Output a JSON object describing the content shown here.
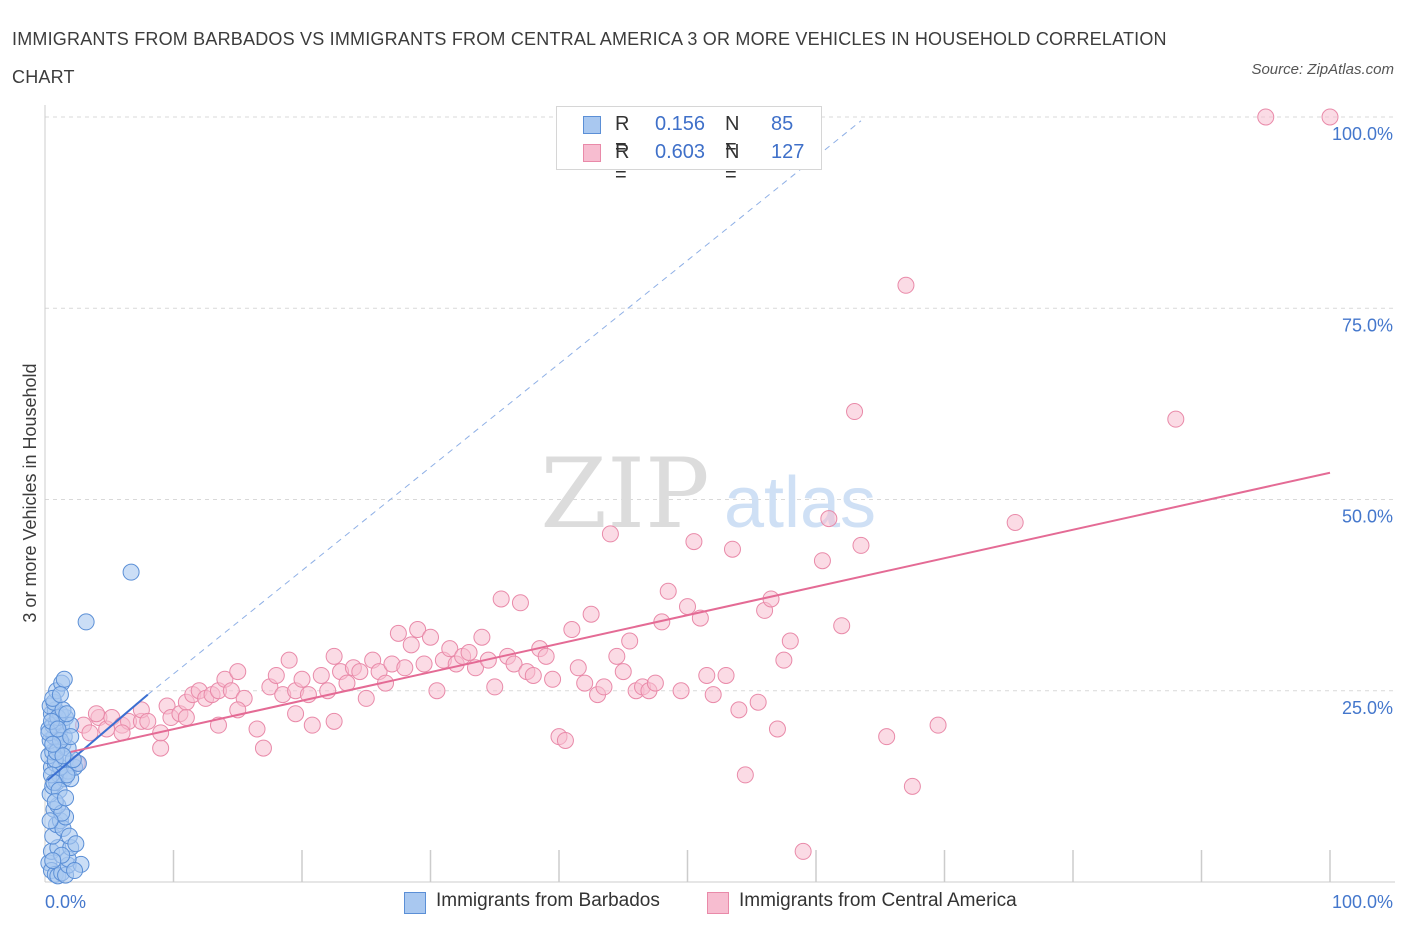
{
  "title": "IMMIGRANTS FROM BARBADOS VS IMMIGRANTS FROM CENTRAL AMERICA 3 OR MORE VEHICLES IN HOUSEHOLD CORRELATION CHART",
  "source": "Source: ZipAtlas.com",
  "watermark": {
    "zip": "ZIP",
    "atlas": "atlas"
  },
  "legend": {
    "r_label": "R =",
    "n_label": "N =",
    "barbados": {
      "r": "0.156",
      "n": "85"
    },
    "central_america": {
      "r": "0.603",
      "n": "127"
    }
  },
  "colors": {
    "barbados_fill": "#a9c8f0",
    "barbados_stroke": "#5b8fd6",
    "barbados_line": "#3a6fd1",
    "central_fill": "#f7bdd0",
    "central_stroke": "#e98aa9",
    "central_line": "#e46b95",
    "axis_text": "#4477cc",
    "grid": "#d9d9d9"
  },
  "chart_data": {
    "type": "scatter",
    "title": "IMMIGRANTS FROM BARBADOS VS IMMIGRANTS FROM CENTRAL AMERICA 3 OR MORE VEHICLES IN HOUSEHOLD CORRELATION CHART",
    "xlabel": "",
    "ylabel": "3 or more Vehicles in Household",
    "xlim": [
      0,
      100
    ],
    "ylim": [
      0,
      100
    ],
    "x_tick_labels": [
      "0.0%",
      "100.0%"
    ],
    "y_tick_values": [
      25,
      50,
      75,
      100
    ],
    "y_tick_labels": [
      "25.0%",
      "50.0%",
      "75.0%",
      "100.0%"
    ],
    "grid": true,
    "legend_position": "top-center",
    "series": [
      {
        "name": "Immigrants from Barbados",
        "r": 0.156,
        "n": 85,
        "trend": {
          "x": [
            0.2,
            8.0
          ],
          "y": [
            13.3,
            24.5
          ]
        },
        "trend_extension": {
          "x": [
            8.0,
            63.5
          ],
          "y": [
            24.5,
            99.5
          ]
        },
        "points": [
          [
            0.3,
            2.5
          ],
          [
            0.5,
            1.5
          ],
          [
            0.8,
            1.0
          ],
          [
            1.0,
            0.8
          ],
          [
            1.3,
            1.2
          ],
          [
            1.6,
            0.9
          ],
          [
            1.8,
            2.2
          ],
          [
            2.8,
            2.3
          ],
          [
            0.5,
            4.0
          ],
          [
            1.0,
            4.5
          ],
          [
            1.8,
            3.0
          ],
          [
            2.0,
            4.5
          ],
          [
            0.6,
            6.0
          ],
          [
            0.9,
            7.5
          ],
          [
            1.2,
            8.0
          ],
          [
            1.4,
            7.0
          ],
          [
            1.6,
            8.5
          ],
          [
            0.7,
            9.5
          ],
          [
            1.0,
            10.0
          ],
          [
            1.3,
            9.0
          ],
          [
            0.4,
            11.5
          ],
          [
            0.6,
            12.5
          ],
          [
            0.9,
            13.0
          ],
          [
            1.1,
            14.0
          ],
          [
            1.5,
            13.5
          ],
          [
            1.8,
            14.5
          ],
          [
            2.0,
            13.5
          ],
          [
            0.5,
            15.0
          ],
          [
            0.8,
            15.5
          ],
          [
            1.2,
            15.0
          ],
          [
            1.6,
            16.0
          ],
          [
            2.3,
            15.0
          ],
          [
            2.6,
            15.5
          ],
          [
            0.3,
            16.5
          ],
          [
            0.6,
            17.0
          ],
          [
            1.0,
            17.5
          ],
          [
            1.4,
            18.0
          ],
          [
            1.8,
            17.5
          ],
          [
            0.4,
            18.5
          ],
          [
            0.7,
            19.0
          ],
          [
            1.1,
            19.5
          ],
          [
            1.5,
            19.0
          ],
          [
            0.3,
            20.0
          ],
          [
            0.6,
            20.5
          ],
          [
            0.9,
            21.0
          ],
          [
            1.3,
            20.5
          ],
          [
            1.6,
            21.5
          ],
          [
            2.0,
            20.5
          ],
          [
            0.5,
            22.0
          ],
          [
            0.8,
            22.5
          ],
          [
            1.2,
            22.0
          ],
          [
            0.4,
            23.0
          ],
          [
            0.7,
            23.5
          ],
          [
            1.0,
            21.5
          ],
          [
            1.4,
            22.5
          ],
          [
            0.9,
            25.0
          ],
          [
            1.3,
            26.0
          ],
          [
            1.5,
            26.5
          ],
          [
            0.6,
            24.0
          ],
          [
            0.8,
            16.0
          ],
          [
            1.7,
            14.0
          ],
          [
            2.2,
            16.0
          ],
          [
            0.5,
            14.0
          ],
          [
            0.9,
            17.0
          ],
          [
            0.3,
            19.5
          ],
          [
            1.2,
            18.5
          ],
          [
            0.7,
            13.0
          ],
          [
            1.4,
            16.5
          ],
          [
            0.5,
            21.0
          ],
          [
            1.0,
            20.0
          ],
          [
            2.0,
            19.0
          ],
          [
            1.1,
            12.0
          ],
          [
            0.8,
            10.5
          ],
          [
            1.6,
            11.0
          ],
          [
            0.4,
            8.0
          ],
          [
            1.9,
            6.0
          ],
          [
            2.4,
            5.0
          ],
          [
            1.3,
            3.5
          ],
          [
            0.6,
            2.8
          ],
          [
            2.3,
            1.5
          ],
          [
            3.2,
            34.0
          ],
          [
            6.7,
            40.5
          ],
          [
            1.7,
            22.0
          ],
          [
            1.2,
            24.5
          ],
          [
            0.6,
            18.0
          ]
        ]
      },
      {
        "name": "Immigrants from Central America",
        "r": 0.603,
        "n": 127,
        "trend": {
          "x": [
            2.0,
            100.0
          ],
          "y": [
            17.0,
            53.5
          ]
        },
        "points": [
          [
            2.5,
            15.5
          ],
          [
            3.0,
            20.5
          ],
          [
            3.5,
            19.5
          ],
          [
            4.2,
            21.5
          ],
          [
            4.8,
            20.0
          ],
          [
            5.2,
            21.5
          ],
          [
            6.0,
            20.5
          ],
          [
            6.5,
            21.0
          ],
          [
            7.5,
            21.0
          ],
          [
            7.5,
            22.5
          ],
          [
            8.0,
            21.0
          ],
          [
            9.0,
            17.5
          ],
          [
            9.5,
            23.0
          ],
          [
            9.8,
            21.5
          ],
          [
            10.5,
            22.0
          ],
          [
            11.0,
            23.5
          ],
          [
            11.5,
            24.5
          ],
          [
            12.0,
            25.0
          ],
          [
            12.5,
            24.0
          ],
          [
            13.0,
            24.5
          ],
          [
            13.5,
            25.0
          ],
          [
            14.0,
            26.5
          ],
          [
            14.5,
            25.0
          ],
          [
            15.0,
            27.5
          ],
          [
            15.5,
            24.0
          ],
          [
            16.5,
            20.0
          ],
          [
            17.0,
            17.5
          ],
          [
            17.5,
            25.5
          ],
          [
            18.0,
            27.0
          ],
          [
            18.5,
            24.5
          ],
          [
            19.0,
            29.0
          ],
          [
            19.5,
            25.0
          ],
          [
            20.0,
            26.5
          ],
          [
            20.5,
            24.5
          ],
          [
            20.8,
            20.5
          ],
          [
            21.5,
            27.0
          ],
          [
            22.0,
            25.0
          ],
          [
            22.5,
            29.5
          ],
          [
            23.0,
            27.5
          ],
          [
            23.5,
            26.0
          ],
          [
            24.0,
            28.0
          ],
          [
            24.5,
            27.5
          ],
          [
            25.0,
            24.0
          ],
          [
            25.5,
            29.0
          ],
          [
            26.0,
            27.5
          ],
          [
            26.5,
            26.0
          ],
          [
            27.0,
            28.5
          ],
          [
            27.5,
            32.5
          ],
          [
            28.0,
            28.0
          ],
          [
            28.5,
            31.0
          ],
          [
            29.0,
            33.0
          ],
          [
            29.5,
            28.5
          ],
          [
            30.0,
            32.0
          ],
          [
            30.5,
            25.0
          ],
          [
            31.0,
            29.0
          ],
          [
            31.5,
            30.5
          ],
          [
            32.0,
            28.5
          ],
          [
            32.5,
            29.5
          ],
          [
            33.0,
            30.0
          ],
          [
            33.5,
            28.0
          ],
          [
            34.0,
            32.0
          ],
          [
            34.5,
            29.0
          ],
          [
            35.0,
            25.5
          ],
          [
            35.5,
            37.0
          ],
          [
            36.0,
            29.5
          ],
          [
            36.5,
            28.5
          ],
          [
            37.0,
            36.5
          ],
          [
            37.5,
            27.5
          ],
          [
            38.0,
            27.0
          ],
          [
            38.5,
            30.5
          ],
          [
            39.0,
            29.5
          ],
          [
            39.5,
            26.5
          ],
          [
            40.0,
            19.0
          ],
          [
            40.5,
            18.5
          ],
          [
            41.0,
            33.0
          ],
          [
            41.5,
            28.0
          ],
          [
            42.0,
            26.0
          ],
          [
            42.5,
            35.0
          ],
          [
            43.0,
            24.5
          ],
          [
            43.5,
            25.5
          ],
          [
            44.0,
            45.5
          ],
          [
            44.5,
            29.5
          ],
          [
            45.0,
            27.5
          ],
          [
            45.5,
            31.5
          ],
          [
            46.0,
            25.0
          ],
          [
            46.5,
            25.5
          ],
          [
            47.0,
            25.0
          ],
          [
            47.5,
            26.0
          ],
          [
            48.0,
            34.0
          ],
          [
            48.5,
            38.0
          ],
          [
            49.5,
            25.0
          ],
          [
            50.0,
            36.0
          ],
          [
            50.5,
            44.5
          ],
          [
            51.0,
            34.5
          ],
          [
            51.5,
            27.0
          ],
          [
            52.0,
            24.5
          ],
          [
            53.0,
            27.0
          ],
          [
            53.5,
            43.5
          ],
          [
            54.0,
            22.5
          ],
          [
            54.5,
            14.0
          ],
          [
            55.5,
            23.5
          ],
          [
            56.0,
            35.5
          ],
          [
            56.5,
            37.0
          ],
          [
            57.0,
            20.0
          ],
          [
            57.5,
            29.0
          ],
          [
            58.0,
            31.5
          ],
          [
            59.0,
            4.0
          ],
          [
            60.5,
            42.0
          ],
          [
            61.0,
            47.5
          ],
          [
            62.0,
            33.5
          ],
          [
            63.0,
            61.5
          ],
          [
            63.5,
            44.0
          ],
          [
            65.5,
            19.0
          ],
          [
            67.0,
            78.0
          ],
          [
            67.5,
            12.5
          ],
          [
            69.5,
            20.5
          ],
          [
            75.5,
            47.0
          ],
          [
            88.0,
            60.5
          ],
          [
            95.0,
            100.0
          ],
          [
            100.0,
            100.0
          ],
          [
            4.0,
            22.0
          ],
          [
            6.0,
            19.5
          ],
          [
            9.0,
            19.5
          ],
          [
            11.0,
            21.5
          ],
          [
            13.5,
            20.5
          ],
          [
            15.0,
            22.5
          ],
          [
            19.5,
            22.0
          ],
          [
            22.5,
            21.0
          ]
        ]
      }
    ]
  }
}
